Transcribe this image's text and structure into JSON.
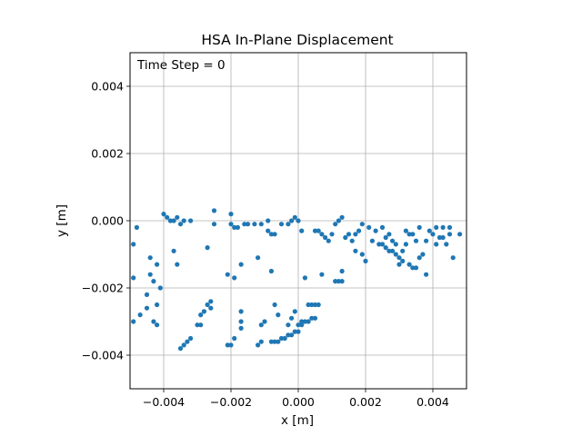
{
  "chart_data": {
    "type": "scatter",
    "title": "HSA In-Plane Displacement",
    "xlabel": "x [m]",
    "ylabel": "y [m]",
    "annotation": "Time Step = 0",
    "xlim": [
      -0.005,
      0.005
    ],
    "ylim": [
      -0.005,
      0.005
    ],
    "xticks": [
      -0.004,
      -0.002,
      0.0,
      0.002,
      0.004
    ],
    "xtick_labels": [
      "−0.004",
      "−0.002",
      "0.000",
      "0.002",
      "0.004"
    ],
    "yticks": [
      -0.004,
      -0.002,
      0.0,
      0.002,
      0.004
    ],
    "ytick_labels": [
      "−0.004",
      "−0.002",
      "0.000",
      "0.002",
      "0.004"
    ],
    "grid": true,
    "colors": {
      "marker": "#1f77b4",
      "grid": "#b0b0b0",
      "axes": "#000000"
    },
    "points": [
      [
        -0.0049,
        -0.0007
      ],
      [
        -0.0048,
        -0.0002
      ],
      [
        -0.0049,
        -0.0017
      ],
      [
        -0.0049,
        -0.003
      ],
      [
        -0.0047,
        -0.0028
      ],
      [
        -0.0045,
        -0.0026
      ],
      [
        -0.0045,
        -0.0022
      ],
      [
        -0.0043,
        -0.003
      ],
      [
        -0.0042,
        -0.0031
      ],
      [
        -0.0044,
        -0.0016
      ],
      [
        -0.0043,
        -0.0018
      ],
      [
        -0.0042,
        -0.0025
      ],
      [
        -0.0044,
        -0.0011
      ],
      [
        -0.0042,
        -0.0013
      ],
      [
        -0.0041,
        -0.002
      ],
      [
        -0.004,
        0.0002
      ],
      [
        -0.0039,
        0.0001
      ],
      [
        -0.0038,
        0.0
      ],
      [
        -0.0037,
        0.0
      ],
      [
        -0.0036,
        0.0001
      ],
      [
        -0.0035,
        -0.0001
      ],
      [
        -0.0034,
        0.0
      ],
      [
        -0.0032,
        0.0
      ],
      [
        -0.0037,
        -0.0009
      ],
      [
        -0.0036,
        -0.0013
      ],
      [
        -0.0035,
        -0.0038
      ],
      [
        -0.0034,
        -0.0037
      ],
      [
        -0.0033,
        -0.0036
      ],
      [
        -0.0032,
        -0.0035
      ],
      [
        -0.003,
        -0.0031
      ],
      [
        -0.0029,
        -0.0031
      ],
      [
        -0.0029,
        -0.0028
      ],
      [
        -0.0028,
        -0.0027
      ],
      [
        -0.0027,
        -0.0025
      ],
      [
        -0.0026,
        -0.0026
      ],
      [
        -0.0026,
        -0.0024
      ],
      [
        -0.0027,
        -0.0008
      ],
      [
        -0.0025,
        0.0003
      ],
      [
        -0.0025,
        -0.0001
      ],
      [
        -0.0021,
        -0.0037
      ],
      [
        -0.002,
        -0.0037
      ],
      [
        -0.0019,
        -0.0035
      ],
      [
        -0.0021,
        -0.0016
      ],
      [
        -0.0019,
        -0.0017
      ],
      [
        -0.0017,
        -0.0032
      ],
      [
        -0.0017,
        -0.003
      ],
      [
        -0.0017,
        -0.0027
      ],
      [
        -0.0017,
        -0.0013
      ],
      [
        -0.002,
        0.0002
      ],
      [
        -0.002,
        -0.0001
      ],
      [
        -0.0019,
        -0.0002
      ],
      [
        -0.0018,
        -0.0002
      ],
      [
        -0.0016,
        -0.0001
      ],
      [
        -0.0015,
        -0.0001
      ],
      [
        -0.0013,
        -0.0001
      ],
      [
        -0.0012,
        -0.0037
      ],
      [
        -0.0011,
        -0.0036
      ],
      [
        -0.0011,
        -0.0031
      ],
      [
        -0.001,
        -0.003
      ],
      [
        -0.0012,
        -0.0011
      ],
      [
        -0.0011,
        -0.0001
      ],
      [
        -0.0009,
        0.0
      ],
      [
        -0.0009,
        -0.0003
      ],
      [
        -0.0008,
        -0.0004
      ],
      [
        -0.0007,
        -0.0004
      ],
      [
        -0.0008,
        -0.0015
      ],
      [
        -0.0007,
        -0.0025
      ],
      [
        -0.0006,
        -0.0028
      ],
      [
        -0.0008,
        -0.0036
      ],
      [
        -0.0007,
        -0.0036
      ],
      [
        -0.0006,
        -0.0036
      ],
      [
        -0.0005,
        -0.0035
      ],
      [
        -0.0004,
        -0.0035
      ],
      [
        -0.0003,
        -0.0034
      ],
      [
        -0.0002,
        -0.0034
      ],
      [
        -0.0001,
        -0.0033
      ],
      [
        0.0,
        -0.0033
      ],
      [
        0.0001,
        -0.0031
      ],
      [
        0.0002,
        -0.003
      ],
      [
        0.0003,
        -0.003
      ],
      [
        0.0004,
        -0.0029
      ],
      [
        0.0005,
        -0.0029
      ],
      [
        -0.0003,
        -0.0031
      ],
      [
        -0.0002,
        -0.0029
      ],
      [
        -0.0001,
        -0.0027
      ],
      [
        0.0,
        -0.0031
      ],
      [
        0.0001,
        -0.003
      ],
      [
        -0.0005,
        -0.0001
      ],
      [
        -0.0003,
        -0.0001
      ],
      [
        -0.0002,
        0.0
      ],
      [
        -0.0001,
        0.0001
      ],
      [
        0.0,
        0.0
      ],
      [
        0.0001,
        -0.0003
      ],
      [
        0.0002,
        -0.0017
      ],
      [
        0.0003,
        -0.0025
      ],
      [
        0.0004,
        -0.0025
      ],
      [
        0.0005,
        -0.0025
      ],
      [
        0.0006,
        -0.0025
      ],
      [
        0.0005,
        -0.0003
      ],
      [
        0.0006,
        -0.0003
      ],
      [
        0.0007,
        -0.0004
      ],
      [
        0.0008,
        -0.0005
      ],
      [
        0.0007,
        -0.0016
      ],
      [
        0.0009,
        -0.0006
      ],
      [
        0.001,
        -0.0004
      ],
      [
        0.0011,
        -0.0001
      ],
      [
        0.0012,
        0.0
      ],
      [
        0.0013,
        0.0001
      ],
      [
        0.0011,
        -0.0018
      ],
      [
        0.0012,
        -0.0018
      ],
      [
        0.0013,
        -0.0018
      ],
      [
        0.0013,
        -0.0015
      ],
      [
        0.0014,
        -0.0005
      ],
      [
        0.0015,
        -0.0004
      ],
      [
        0.0016,
        -0.0006
      ],
      [
        0.0017,
        -0.0004
      ],
      [
        0.0018,
        -0.0003
      ],
      [
        0.0017,
        -0.0009
      ],
      [
        0.0019,
        -0.001
      ],
      [
        0.002,
        -0.0012
      ],
      [
        0.0019,
        -0.0001
      ],
      [
        0.0021,
        -0.0002
      ],
      [
        0.0022,
        -0.0006
      ],
      [
        0.0023,
        -0.0003
      ],
      [
        0.0024,
        -0.0007
      ],
      [
        0.0025,
        -0.0007
      ],
      [
        0.0026,
        -0.0008
      ],
      [
        0.0026,
        -0.0005
      ],
      [
        0.0027,
        -0.0009
      ],
      [
        0.0028,
        -0.0009
      ],
      [
        0.0028,
        -0.0006
      ],
      [
        0.0029,
        -0.0007
      ],
      [
        0.0029,
        -0.001
      ],
      [
        0.003,
        -0.0011
      ],
      [
        0.003,
        -0.0013
      ],
      [
        0.0031,
        -0.0012
      ],
      [
        0.0032,
        -0.0003
      ],
      [
        0.0033,
        -0.0004
      ],
      [
        0.0033,
        -0.0013
      ],
      [
        0.0034,
        -0.0014
      ],
      [
        0.0035,
        -0.0014
      ],
      [
        0.0034,
        -0.0004
      ],
      [
        0.0035,
        -0.0006
      ],
      [
        0.0036,
        -0.0011
      ],
      [
        0.0037,
        -0.001
      ],
      [
        0.0038,
        -0.0016
      ],
      [
        0.0039,
        -0.0003
      ],
      [
        0.004,
        -0.0004
      ],
      [
        0.0041,
        -0.0002
      ],
      [
        0.0041,
        -0.0007
      ],
      [
        0.0042,
        -0.0005
      ],
      [
        0.0043,
        -0.0005
      ],
      [
        0.0043,
        -0.0002
      ],
      [
        0.0044,
        -0.0007
      ],
      [
        0.0045,
        -0.0002
      ],
      [
        0.0045,
        -0.0004
      ],
      [
        0.0046,
        -0.0011
      ],
      [
        0.0048,
        -0.0004
      ],
      [
        0.0036,
        -0.0002
      ],
      [
        0.0038,
        -0.0006
      ],
      [
        0.0027,
        -0.0004
      ],
      [
        0.0025,
        -0.0002
      ],
      [
        0.0032,
        -0.0007
      ],
      [
        0.0031,
        -0.0009
      ]
    ]
  }
}
